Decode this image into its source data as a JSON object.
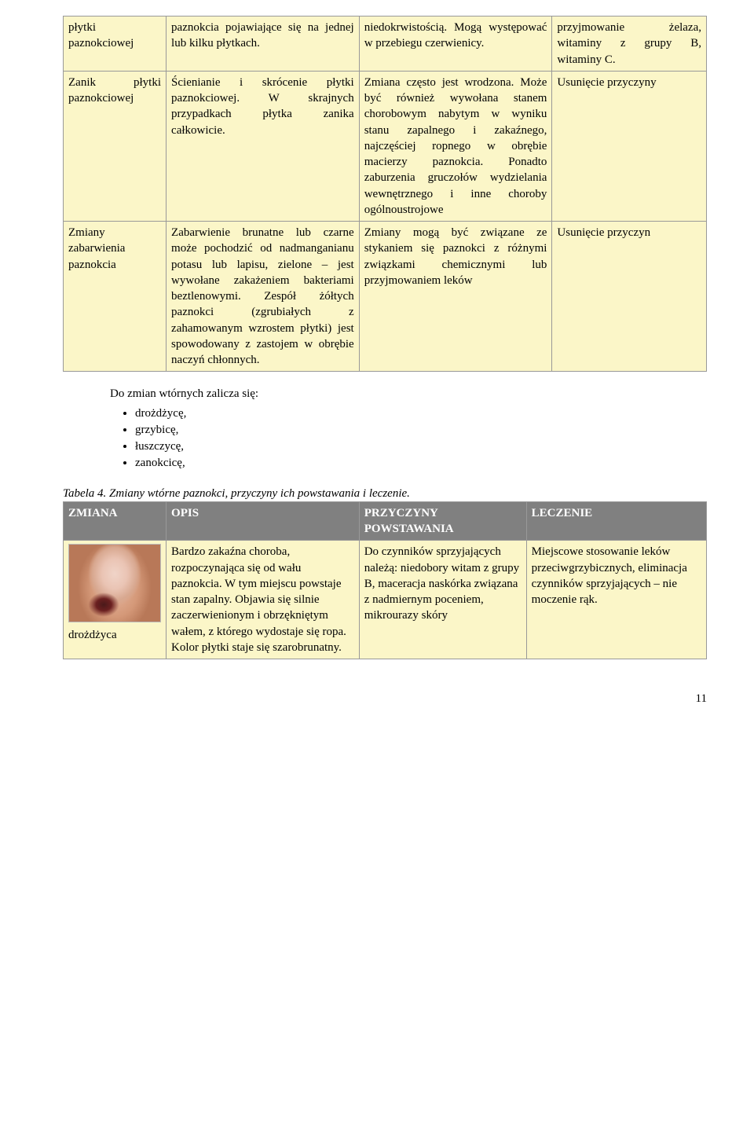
{
  "table1": {
    "rows": [
      {
        "c1": "płytki paznokciowej",
        "c2": "paznokcia pojawiające się na jednej lub kilku płytkach.",
        "c3": "niedokrwistością. Mogą występować w przebiegu czerwienicy.",
        "c4": "przyjmowanie żelaza, witaminy z grupy B, witaminy C."
      },
      {
        "c1": "Zanik płytki paznokciowej",
        "c2": "Ścienianie i skrócenie płytki paznokciowej. W skrajnych przypadkach płytka zanika całkowicie.",
        "c3": "Zmiana często jest wrodzona. Może być również wywołana stanem chorobowym nabytym w wyniku stanu zapalnego i zakaźnego, najczęściej ropnego w obrębie macierzy paznokcia. Ponadto zaburzenia gruczołów wydzielania wewnętrznego i inne choroby ogólnoustrojowe",
        "c4": "Usunięcie przyczyny"
      },
      {
        "c1": "Zmiany zabarwienia paznokcia",
        "c2": "Zabarwienie brunatne lub czarne może pochodzić od nadmanganianu potasu lub lapisu, zielone – jest wywołane zakażeniem bakteriami beztlenowymi. Zespół żółtych paznokci (zgrubiałych z zahamowanym wzrostem płytki) jest spowodowany z zastojem w obrębie naczyń chłonnych.",
        "c3": "Zmiany mogą być związane ze stykaniem się paznokci z różnymi związkami chemicznymi lub przyjmowaniem leków",
        "c4": "Usunięcie przyczyn"
      }
    ]
  },
  "bullets": {
    "lead": "Do zmian wtórnych zalicza się:",
    "items": [
      "drożdżycę,",
      "grzybicę,",
      "łuszczycę,",
      "zanokcicę,"
    ]
  },
  "caption": "Tabela 4. Zmiany wtórne paznokci,  przyczyny ich powstawania i leczenie.",
  "table2": {
    "headers": {
      "h1": "ZMIANA",
      "h2": "OPIS",
      "h3": "PRZYCZYNY POWSTAWANIA",
      "h4": "LECZENIE"
    },
    "row": {
      "label": "drożdżyca",
      "c2": "Bardzo zakaźna choroba, rozpoczynająca się od wału paznokcia. W tym miejscu powstaje stan zapalny. Objawia się silnie zaczerwienionym i obrzękniętym wałem, z którego wydostaje się ropa. Kolor płytki staje się szarobrunatny.",
      "c3": "Do czynników sprzyjających należą: niedobory witam z grupy B, maceracja naskórka związana z nadmiernym poceniem, mikrourazy skóry",
      "c4": "Miejscowe stosowanie leków przeciwgrzybicznych, eliminacja czynników sprzyjających – nie moczenie rąk."
    }
  },
  "page_num": "11"
}
